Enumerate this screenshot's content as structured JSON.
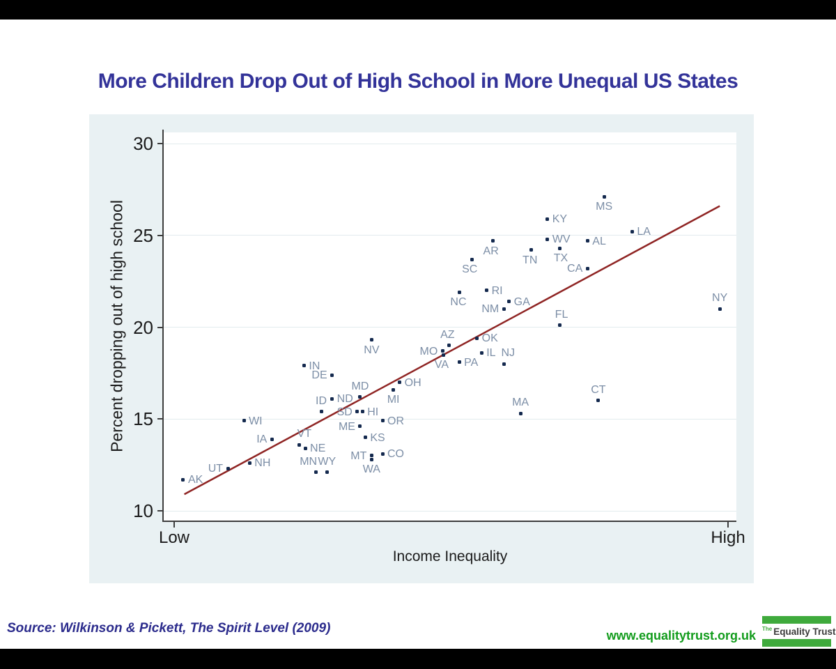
{
  "title": "More Children Drop Out of High School in More Unequal US States",
  "colors": {
    "title": "#333399",
    "chart_background": "#e9f1f3",
    "plot_background": "#ffffff",
    "gridline": "#e2ebee",
    "axis": "#3d3d3d",
    "dot": "#14294e",
    "state_label": "#7c8ea6",
    "trend_line": "#8f2423",
    "source_text": "#2b2b8c",
    "url_green": "#129c1c",
    "logo_green": "#3faa3c"
  },
  "chart_data": {
    "type": "scatter",
    "title": "More Children Drop Out of High School in More Unequal US States",
    "xlabel": "Income Inequality",
    "ylabel": "Percent dropping out of high school",
    "ylim": [
      10,
      30
    ],
    "y_ticks": [
      10,
      15,
      20,
      25,
      30
    ],
    "x_axis": {
      "min_label": "Low",
      "max_label": "High"
    },
    "grid": "horizontal",
    "legend": "none",
    "x_units": "relative inequality position 0-100 (axis unlabeled, Low to High)",
    "points": [
      {
        "state": "AK",
        "x": 3.4,
        "y": 11.7,
        "label_pos": "right"
      },
      {
        "state": "UT",
        "x": 11.2,
        "y": 12.3,
        "label_pos": "left"
      },
      {
        "state": "NH",
        "x": 15.0,
        "y": 12.6,
        "label_pos": "right"
      },
      {
        "state": "WI",
        "x": 14.0,
        "y": 14.9,
        "label_pos": "right"
      },
      {
        "state": "IA",
        "x": 18.9,
        "y": 13.9,
        "label_pos": "left"
      },
      {
        "state": "VT",
        "x": 23.7,
        "y": 13.6,
        "label_pos": "above",
        "dx": 7
      },
      {
        "state": "NE",
        "x": 24.7,
        "y": 13.4,
        "label_pos": "right"
      },
      {
        "state": "MN",
        "x": 26.6,
        "y": 12.1,
        "label_pos": "above",
        "dx": -11
      },
      {
        "state": "WY",
        "x": 28.5,
        "y": 12.1,
        "label_pos": "above"
      },
      {
        "state": "IN",
        "x": 24.5,
        "y": 17.9,
        "label_pos": "right"
      },
      {
        "state": "DE",
        "x": 29.4,
        "y": 17.4,
        "label_pos": "left"
      },
      {
        "state": "ND",
        "x": 29.4,
        "y": 16.1,
        "label_pos": "right"
      },
      {
        "state": "ID",
        "x": 27.5,
        "y": 15.4,
        "label_pos": "above"
      },
      {
        "state": "SD",
        "x": 33.8,
        "y": 15.4,
        "label_pos": "left"
      },
      {
        "state": "HI",
        "x": 34.7,
        "y": 15.4,
        "label_pos": "right"
      },
      {
        "state": "MD",
        "x": 34.3,
        "y": 16.2,
        "label_pos": "above"
      },
      {
        "state": "ME",
        "x": 34.3,
        "y": 14.6,
        "label_pos": "left"
      },
      {
        "state": "KS",
        "x": 35.2,
        "y": 14.0,
        "label_pos": "right"
      },
      {
        "state": "MT",
        "x": 36.3,
        "y": 13.0,
        "label_pos": "left"
      },
      {
        "state": "WA",
        "x": 36.3,
        "y": 12.8,
        "label_pos": "below"
      },
      {
        "state": "CO",
        "x": 38.2,
        "y": 13.1,
        "label_pos": "right"
      },
      {
        "state": "OR",
        "x": 38.2,
        "y": 14.9,
        "label_pos": "right"
      },
      {
        "state": "MI",
        "x": 40.1,
        "y": 16.6,
        "label_pos": "below"
      },
      {
        "state": "OH",
        "x": 41.2,
        "y": 17.0,
        "label_pos": "right"
      },
      {
        "state": "NV",
        "x": 36.3,
        "y": 19.3,
        "label_pos": "below"
      },
      {
        "state": "MO",
        "x": 48.7,
        "y": 18.7,
        "label_pos": "left"
      },
      {
        "state": "VA",
        "x": 48.9,
        "y": 18.5,
        "label_pos": "below",
        "dx": -3
      },
      {
        "state": "AZ",
        "x": 49.8,
        "y": 19.0,
        "label_pos": "above",
        "dx": -2
      },
      {
        "state": "OK",
        "x": 54.7,
        "y": 19.4,
        "label_pos": "right"
      },
      {
        "state": "IL",
        "x": 55.5,
        "y": 18.6,
        "label_pos": "right"
      },
      {
        "state": "PA",
        "x": 51.6,
        "y": 18.1,
        "label_pos": "right"
      },
      {
        "state": "NJ",
        "x": 59.4,
        "y": 18.0,
        "label_pos": "above",
        "dx": 6
      },
      {
        "state": "NC",
        "x": 51.7,
        "y": 21.9,
        "label_pos": "below",
        "dx": -2
      },
      {
        "state": "RI",
        "x": 56.4,
        "y": 22.0,
        "label_pos": "right"
      },
      {
        "state": "NM",
        "x": 59.4,
        "y": 21.0,
        "label_pos": "left"
      },
      {
        "state": "GA",
        "x": 60.3,
        "y": 21.4,
        "label_pos": "right"
      },
      {
        "state": "FL",
        "x": 69.1,
        "y": 20.1,
        "label_pos": "above",
        "dx": 3
      },
      {
        "state": "SC",
        "x": 53.8,
        "y": 23.7,
        "label_pos": "below",
        "dx": -3
      },
      {
        "state": "AR",
        "x": 57.5,
        "y": 24.7,
        "label_pos": "below",
        "dx": -3
      },
      {
        "state": "TN",
        "x": 64.2,
        "y": 24.2,
        "label_pos": "below",
        "dx": -2
      },
      {
        "state": "KY",
        "x": 67.0,
        "y": 25.9,
        "label_pos": "right"
      },
      {
        "state": "WV",
        "x": 67.0,
        "y": 24.8,
        "label_pos": "right"
      },
      {
        "state": "TX",
        "x": 69.1,
        "y": 24.3,
        "label_pos": "below",
        "dx": 2
      },
      {
        "state": "CA",
        "x": 74.0,
        "y": 23.2,
        "label_pos": "left"
      },
      {
        "state": "AL",
        "x": 74.0,
        "y": 24.7,
        "label_pos": "right"
      },
      {
        "state": "MS",
        "x": 76.9,
        "y": 27.1,
        "label_pos": "below"
      },
      {
        "state": "LA",
        "x": 81.8,
        "y": 25.2,
        "label_pos": "right"
      },
      {
        "state": "MA",
        "x": 62.3,
        "y": 15.3,
        "label_pos": "above"
      },
      {
        "state": "CT",
        "x": 75.9,
        "y": 16.0,
        "label_pos": "above"
      },
      {
        "state": "NY",
        "x": 97.1,
        "y": 21.0,
        "label_pos": "above"
      }
    ],
    "trend_line": {
      "x1": 3.6,
      "y1": 10.9,
      "x2": 97.1,
      "y2": 26.6
    }
  },
  "footer": {
    "source": "Source: Wilkinson & Pickett, The Spirit Level (2009)",
    "url": "www.equalitytrust.org.uk",
    "logo_prefix": "The",
    "logo_name": "Equality Trust"
  }
}
